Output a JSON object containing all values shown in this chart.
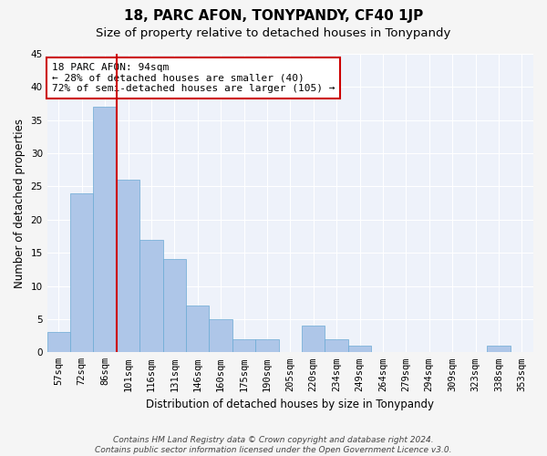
{
  "title": "18, PARC AFON, TONYPANDY, CF40 1JP",
  "subtitle": "Size of property relative to detached houses in Tonypandy",
  "xlabel": "Distribution of detached houses by size in Tonypandy",
  "ylabel": "Number of detached properties",
  "categories": [
    "57sqm",
    "72sqm",
    "86sqm",
    "101sqm",
    "116sqm",
    "131sqm",
    "146sqm",
    "160sqm",
    "175sqm",
    "190sqm",
    "205sqm",
    "220sqm",
    "234sqm",
    "249sqm",
    "264sqm",
    "279sqm",
    "294sqm",
    "309sqm",
    "323sqm",
    "338sqm",
    "353sqm"
  ],
  "values": [
    3,
    24,
    37,
    26,
    17,
    14,
    7,
    5,
    2,
    2,
    0,
    4,
    2,
    1,
    0,
    0,
    0,
    0,
    0,
    1,
    0
  ],
  "bar_color": "#aec6e8",
  "bar_edge_color": "#6aaad4",
  "vline_x": 2.5,
  "vline_color": "#cc0000",
  "ylim": [
    0,
    45
  ],
  "yticks": [
    0,
    5,
    10,
    15,
    20,
    25,
    30,
    35,
    40,
    45
  ],
  "annotation_title": "18 PARC AFON: 94sqm",
  "annotation_line1": "← 28% of detached houses are smaller (40)",
  "annotation_line2": "72% of semi-detached houses are larger (105) →",
  "annotation_box_color": "#cc0000",
  "footer_line1": "Contains HM Land Registry data © Crown copyright and database right 2024.",
  "footer_line2": "Contains public sector information licensed under the Open Government Licence v3.0.",
  "bg_color": "#eef2fa",
  "grid_color": "#ffffff",
  "fig_bg_color": "#f5f5f5",
  "title_fontsize": 11,
  "subtitle_fontsize": 9.5,
  "axis_label_fontsize": 8.5,
  "tick_fontsize": 7.5,
  "annotation_fontsize": 8,
  "footer_fontsize": 6.5
}
